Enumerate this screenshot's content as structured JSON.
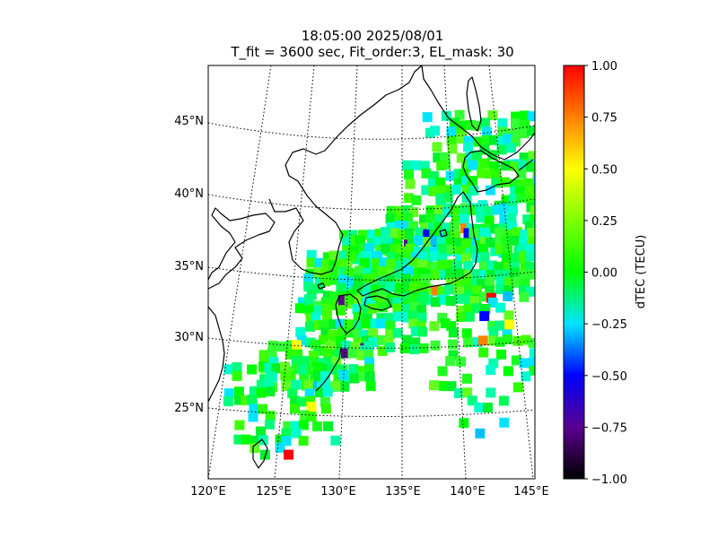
{
  "figure": {
    "title_line1": "18:05:00 2025/08/01",
    "title_line2": "T_fit = 3600 sec, Fit_order:3, EL_mask: 30"
  },
  "map": {
    "lon_labels": [
      "120°E",
      "125°E",
      "130°E",
      "135°E",
      "140°E",
      "145°E"
    ],
    "lat_labels": [
      "25°N",
      "30°N",
      "35°N",
      "40°N",
      "45°N"
    ],
    "lon_range": [
      120,
      145
    ],
    "lat_range": [
      20,
      49
    ]
  },
  "colorbar": {
    "label": "dTEC (TECU)",
    "ticks": [
      "1.00",
      "0.75",
      "0.50",
      "0.25",
      "0.00",
      "−0.25",
      "−0.50",
      "−0.75",
      "−1.00"
    ],
    "range": [
      -1.0,
      1.0
    ],
    "colormap": [
      "#000000",
      "#5a0090",
      "#0000ff",
      "#00e5ff",
      "#00ff00",
      "#7fff00",
      "#ffff00",
      "#ff8000",
      "#ff0000"
    ]
  }
}
